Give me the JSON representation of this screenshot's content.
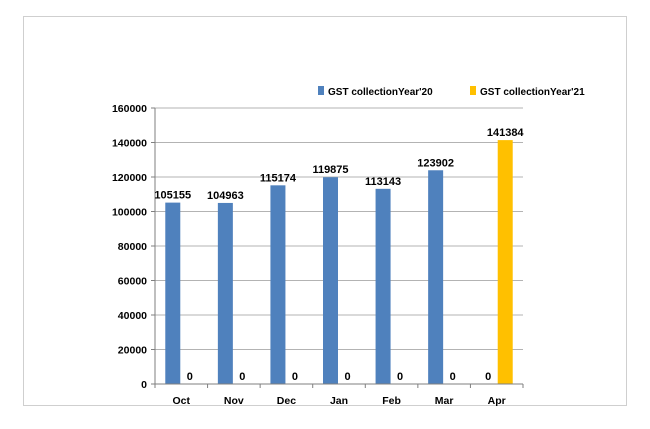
{
  "chart_data": {
    "type": "bar",
    "title": "",
    "xlabel": "",
    "ylabel": "",
    "categories": [
      "Oct",
      "Nov",
      "Dec",
      "Jan",
      "Feb",
      "Mar",
      "Apr"
    ],
    "series": [
      {
        "name": "GST collectionYear'20",
        "color": "#4f81bd",
        "values": [
          105155,
          104963,
          115174,
          119875,
          113143,
          123902,
          0
        ]
      },
      {
        "name": "GST collectionYear'21",
        "color": "#ffc000",
        "values": [
          0,
          0,
          0,
          0,
          0,
          0,
          141384
        ]
      }
    ],
    "ylim": [
      0,
      160000
    ],
    "yticks": [
      0,
      20000,
      40000,
      60000,
      80000,
      100000,
      120000,
      140000,
      160000
    ],
    "grid": true,
    "legend_position": "top-right",
    "data_labels": true
  }
}
